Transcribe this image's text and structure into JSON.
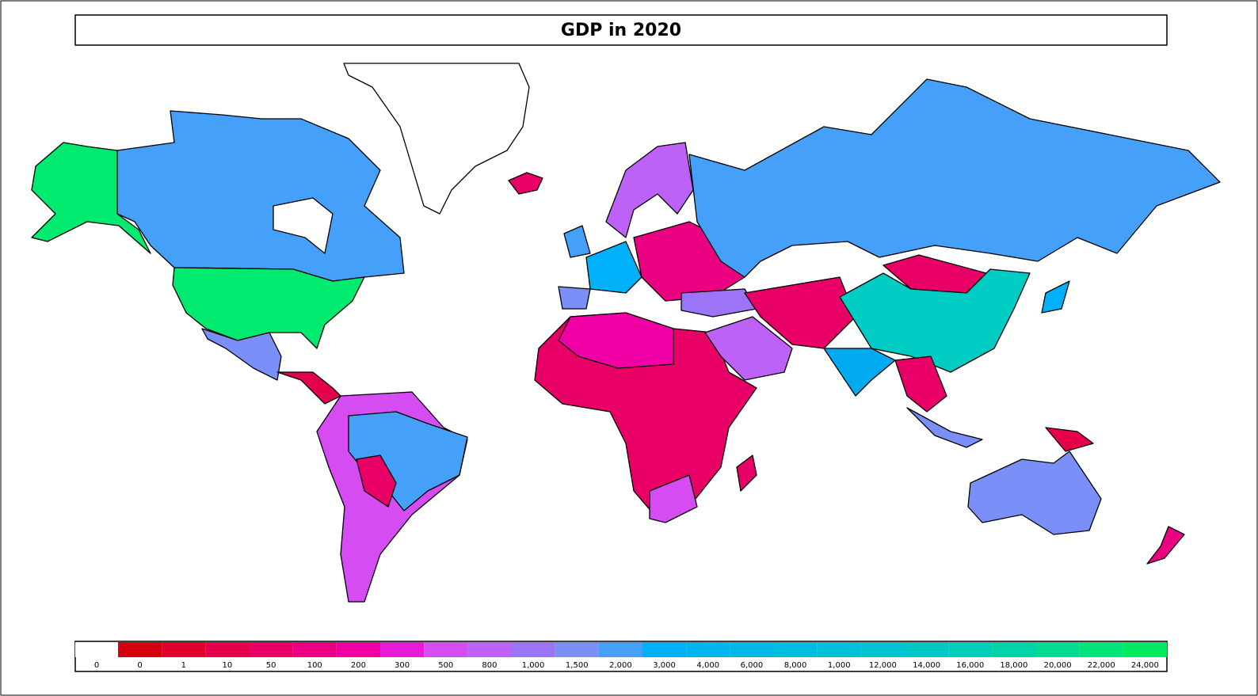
{
  "title": "GDP in 2020",
  "legend": {
    "items": [
      {
        "label": "0",
        "color": "#ffffff"
      },
      {
        "label": "0",
        "color": "#d40010"
      },
      {
        "label": "1",
        "color": "#e0002c"
      },
      {
        "label": "10",
        "color": "#e4004a"
      },
      {
        "label": "50",
        "color": "#e80066"
      },
      {
        "label": "100",
        "color": "#ec0082"
      },
      {
        "label": "200",
        "color": "#f000a4"
      },
      {
        "label": "300",
        "color": "#e61ad8"
      },
      {
        "label": "500",
        "color": "#d54cf2"
      },
      {
        "label": "800",
        "color": "#bd62f6"
      },
      {
        "label": "1,000",
        "color": "#9c74f8"
      },
      {
        "label": "1,500",
        "color": "#7a90f8"
      },
      {
        "label": "2,000",
        "color": "#44a0f8"
      },
      {
        "label": "3,000",
        "color": "#00b0f8"
      },
      {
        "label": "4,000",
        "color": "#00b4f0"
      },
      {
        "label": "6,000",
        "color": "#00b8e8"
      },
      {
        "label": "8,000",
        "color": "#00bce0"
      },
      {
        "label": "1,000",
        "color": "#00c0da"
      },
      {
        "label": "12,000",
        "color": "#00c4d2"
      },
      {
        "label": "14,000",
        "color": "#00c8c6"
      },
      {
        "label": "16,000",
        "color": "#00ceb8"
      },
      {
        "label": "18,000",
        "color": "#00d4a6"
      },
      {
        "label": "20,000",
        "color": "#00dc90"
      },
      {
        "label": "22,000",
        "color": "#00e47a"
      },
      {
        "label": "24,000",
        "color": "#00ea62"
      }
    ]
  }
}
